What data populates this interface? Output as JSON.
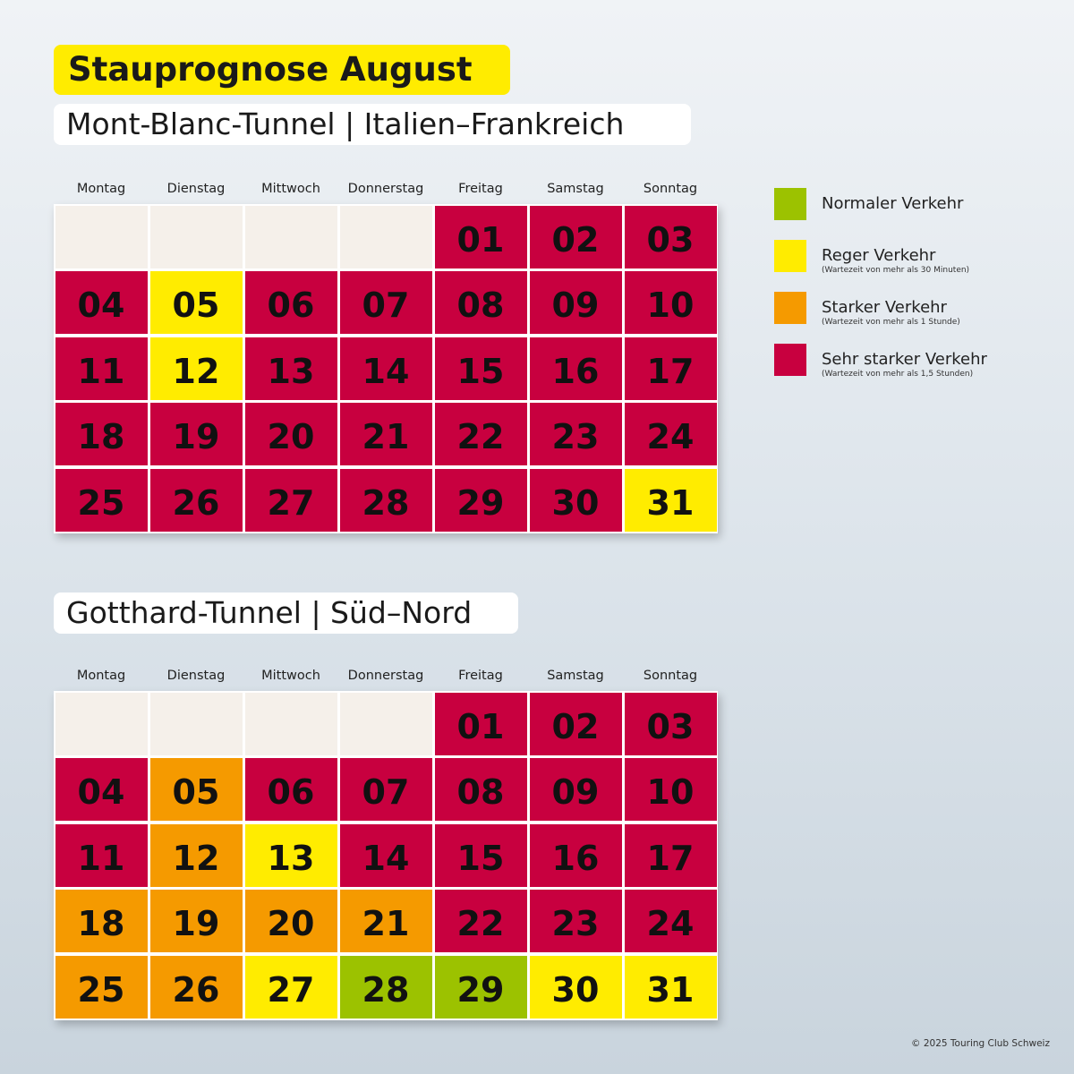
{
  "title": "Stauprognose August",
  "weekdays": [
    "Montag",
    "Dienstag",
    "Mittwoch",
    "Donnerstag",
    "Freitag",
    "Samstag",
    "Sonntag"
  ],
  "colors": {
    "empty": "#f5f0ea",
    "normal": "#9cc200",
    "reger": "#ffec00",
    "starker": "#f59a00",
    "sehr": "#c8003f"
  },
  "legend": [
    {
      "status": "normal",
      "label": "Normaler Verkehr",
      "note": ""
    },
    {
      "status": "reger",
      "label": "Reger Verkehr",
      "note": "(Wartezeit von mehr als 30 Minuten)"
    },
    {
      "status": "starker",
      "label": "Starker Verkehr",
      "note": "(Wartezeit von mehr als 1 Stunde)"
    },
    {
      "status": "sehr",
      "label": "Sehr starker Verkehr",
      "note": "(Wartezeit von mehr als 1,5 Stunden)"
    }
  ],
  "calendars": [
    {
      "subtitle": "Mont-Blanc-Tunnel | Italien–Frankreich",
      "days": [
        {
          "d": "01",
          "s": "sehr"
        },
        {
          "d": "02",
          "s": "sehr"
        },
        {
          "d": "03",
          "s": "sehr"
        },
        {
          "d": "04",
          "s": "sehr"
        },
        {
          "d": "05",
          "s": "reger"
        },
        {
          "d": "06",
          "s": "sehr"
        },
        {
          "d": "07",
          "s": "sehr"
        },
        {
          "d": "08",
          "s": "sehr"
        },
        {
          "d": "09",
          "s": "sehr"
        },
        {
          "d": "10",
          "s": "sehr"
        },
        {
          "d": "11",
          "s": "sehr"
        },
        {
          "d": "12",
          "s": "reger"
        },
        {
          "d": "13",
          "s": "sehr"
        },
        {
          "d": "14",
          "s": "sehr"
        },
        {
          "d": "15",
          "s": "sehr"
        },
        {
          "d": "16",
          "s": "sehr"
        },
        {
          "d": "17",
          "s": "sehr"
        },
        {
          "d": "18",
          "s": "sehr"
        },
        {
          "d": "19",
          "s": "sehr"
        },
        {
          "d": "20",
          "s": "sehr"
        },
        {
          "d": "21",
          "s": "sehr"
        },
        {
          "d": "22",
          "s": "sehr"
        },
        {
          "d": "23",
          "s": "sehr"
        },
        {
          "d": "24",
          "s": "sehr"
        },
        {
          "d": "25",
          "s": "sehr"
        },
        {
          "d": "26",
          "s": "sehr"
        },
        {
          "d": "27",
          "s": "sehr"
        },
        {
          "d": "28",
          "s": "sehr"
        },
        {
          "d": "29",
          "s": "sehr"
        },
        {
          "d": "30",
          "s": "sehr"
        },
        {
          "d": "31",
          "s": "reger"
        }
      ]
    },
    {
      "subtitle": "Gotthard-Tunnel | Süd–Nord",
      "days": [
        {
          "d": "01",
          "s": "sehr"
        },
        {
          "d": "02",
          "s": "sehr"
        },
        {
          "d": "03",
          "s": "sehr"
        },
        {
          "d": "04",
          "s": "sehr"
        },
        {
          "d": "05",
          "s": "starker"
        },
        {
          "d": "06",
          "s": "sehr"
        },
        {
          "d": "07",
          "s": "sehr"
        },
        {
          "d": "08",
          "s": "sehr"
        },
        {
          "d": "09",
          "s": "sehr"
        },
        {
          "d": "10",
          "s": "sehr"
        },
        {
          "d": "11",
          "s": "sehr"
        },
        {
          "d": "12",
          "s": "starker"
        },
        {
          "d": "13",
          "s": "reger"
        },
        {
          "d": "14",
          "s": "sehr"
        },
        {
          "d": "15",
          "s": "sehr"
        },
        {
          "d": "16",
          "s": "sehr"
        },
        {
          "d": "17",
          "s": "sehr"
        },
        {
          "d": "18",
          "s": "starker"
        },
        {
          "d": "19",
          "s": "starker"
        },
        {
          "d": "20",
          "s": "starker"
        },
        {
          "d": "21",
          "s": "starker"
        },
        {
          "d": "22",
          "s": "sehr"
        },
        {
          "d": "23",
          "s": "sehr"
        },
        {
          "d": "24",
          "s": "sehr"
        },
        {
          "d": "25",
          "s": "starker"
        },
        {
          "d": "26",
          "s": "starker"
        },
        {
          "d": "27",
          "s": "reger"
        },
        {
          "d": "28",
          "s": "normal"
        },
        {
          "d": "29",
          "s": "normal"
        },
        {
          "d": "30",
          "s": "reger"
        },
        {
          "d": "31",
          "s": "reger"
        }
      ]
    }
  ],
  "copyright": "© 2025 Touring Club Schweiz"
}
